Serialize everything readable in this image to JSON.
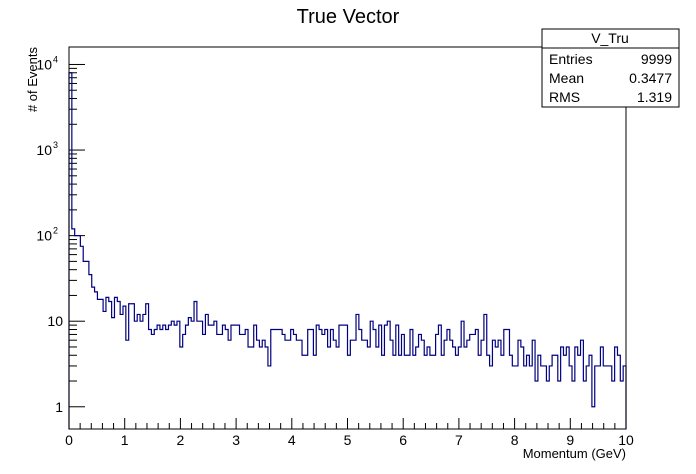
{
  "chart_data": {
    "type": "histogram",
    "title": "True Vector",
    "xlabel": "Momentum (GeV)",
    "ylabel": "# of Events",
    "xlim": [
      0,
      10
    ],
    "ylim": [
      0.55,
      16000
    ],
    "yscale": "log",
    "x_ticks": [
      "0",
      "1",
      "2",
      "3",
      "4",
      "5",
      "6",
      "7",
      "8",
      "9",
      "10"
    ],
    "y_ticks": [
      {
        "value": 1,
        "label": "1"
      },
      {
        "value": 10,
        "label": "10"
      },
      {
        "value": 100,
        "label": "10",
        "exp": "2"
      },
      {
        "value": 1000,
        "label": "10",
        "exp": "3"
      },
      {
        "value": 10000,
        "label": "10",
        "exp": "4"
      }
    ],
    "bin_width": 0.1,
    "line_color": "#000080",
    "values": [
      8000,
      120,
      100,
      100,
      75,
      50,
      50,
      35,
      25,
      22,
      18,
      18,
      13,
      19,
      17,
      11,
      19,
      17,
      12,
      15,
      6,
      16,
      16,
      10,
      12,
      10,
      12,
      16,
      8,
      7,
      8,
      9,
      8,
      9,
      8,
      9,
      10,
      9,
      10,
      5,
      7,
      9,
      11,
      10,
      17,
      10,
      10,
      7,
      12,
      9,
      9,
      10,
      7,
      7,
      9,
      8,
      6,
      9,
      9,
      9,
      7,
      7,
      8,
      5,
      5,
      9,
      6,
      5,
      6,
      5,
      3,
      8,
      8,
      8,
      8,
      7,
      6,
      6,
      8,
      7,
      6,
      6,
      4,
      4,
      8,
      8,
      4,
      9,
      8,
      7,
      8,
      5,
      8,
      6,
      5,
      9,
      9,
      9,
      4,
      6,
      6,
      12,
      8,
      6,
      6,
      5,
      10,
      8,
      5,
      9,
      4,
      9,
      10,
      6,
      4,
      9,
      4,
      7,
      4,
      4,
      8,
      4,
      5,
      7,
      6,
      4,
      5,
      4,
      4,
      7,
      9,
      4,
      6,
      8,
      6,
      5,
      4,
      5,
      10,
      5,
      6,
      7,
      7,
      8,
      4,
      6,
      12,
      4,
      3,
      6,
      5,
      6,
      4,
      8,
      8,
      4,
      3,
      3,
      6,
      5,
      3,
      4,
      3,
      6,
      2,
      4,
      3,
      3,
      2,
      3,
      4,
      4,
      2,
      5,
      4,
      5,
      3,
      2,
      5,
      4,
      6,
      2,
      3,
      4,
      1,
      3,
      3,
      5,
      3,
      3,
      3,
      2,
      5,
      4,
      2,
      3
    ],
    "stats_box": {
      "name": "V_Tru",
      "rows": [
        {
          "label": "Entries",
          "value": "9999"
        },
        {
          "label": "Mean",
          "value": "0.3477"
        },
        {
          "label": "RMS",
          "value": "1.319"
        }
      ]
    }
  }
}
